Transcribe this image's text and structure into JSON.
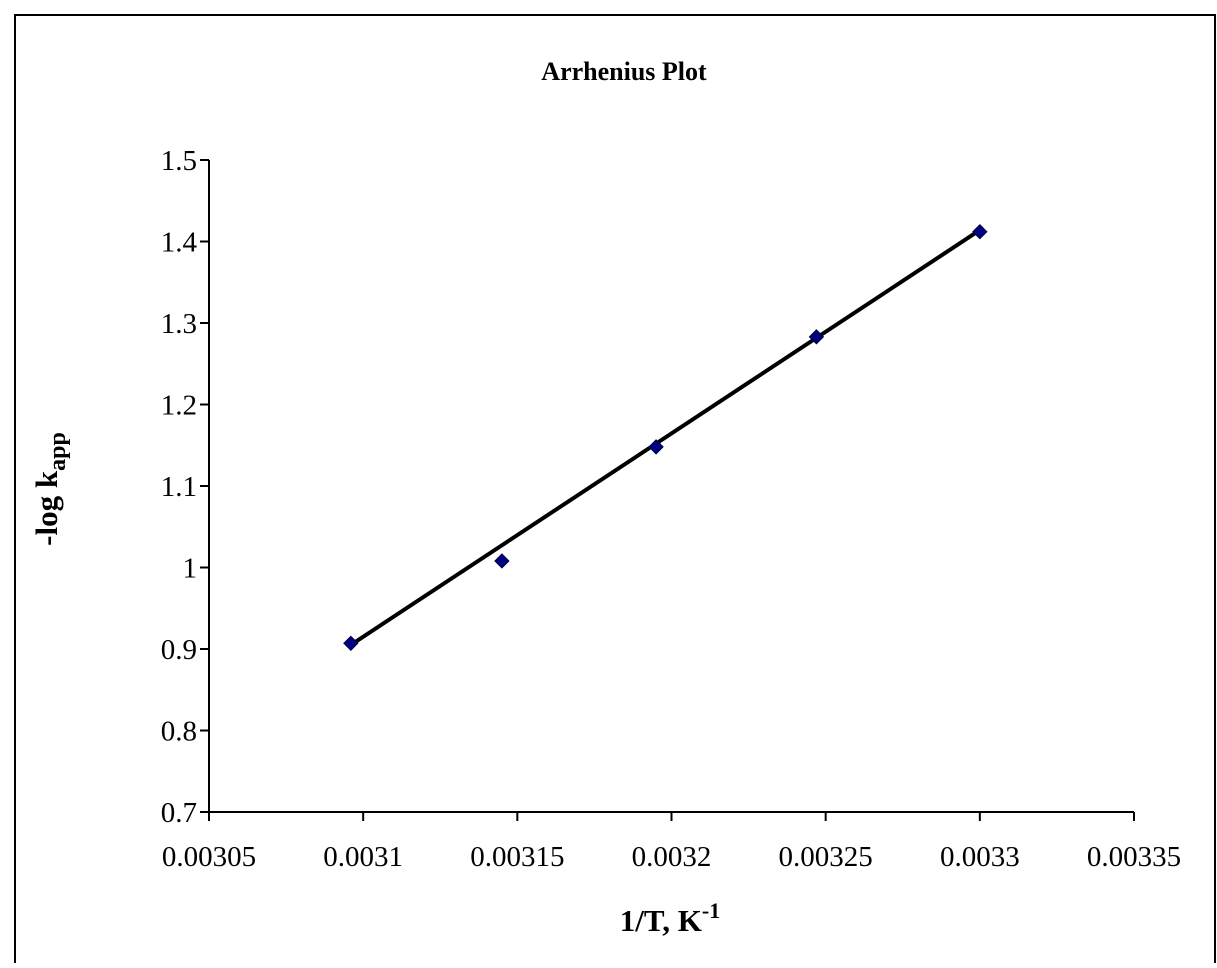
{
  "chart_data": {
    "type": "scatter",
    "title": "Arrhenius Plot",
    "xlabel": {
      "main": "1/T, K",
      "superscript": "-1"
    },
    "ylabel": {
      "main": "-log k",
      "subscript": "app"
    },
    "xlim": [
      0.00305,
      0.00335
    ],
    "ylim": [
      0.7,
      1.5
    ],
    "x_ticks": [
      0.00305,
      0.0031,
      0.00315,
      0.0032,
      0.00325,
      0.0033,
      0.00335
    ],
    "x_tick_labels": [
      "0.00305",
      "0.0031",
      "0.00315",
      "0.0032",
      "0.00325",
      "0.0033",
      "0.00335"
    ],
    "y_ticks": [
      0.7,
      0.8,
      0.9,
      1.0,
      1.1,
      1.2,
      1.3,
      1.4,
      1.5
    ],
    "y_tick_labels": [
      "0.7",
      "0.8",
      "0.9",
      "1",
      "1.1",
      "1.2",
      "1.3",
      "1.4",
      "1.5"
    ],
    "series": [
      {
        "x": [
          0.003096,
          0.003145,
          0.003195,
          0.003247,
          0.0033
        ],
        "y": [
          0.907,
          1.008,
          1.148,
          1.283,
          1.412
        ],
        "marker": "diamond",
        "color": "#000080"
      }
    ],
    "trendline": {
      "type": "linear",
      "x": [
        0.003096,
        0.0033
      ],
      "y": [
        0.905,
        1.414
      ],
      "color": "#000000"
    },
    "grid": false,
    "legend": "none"
  }
}
